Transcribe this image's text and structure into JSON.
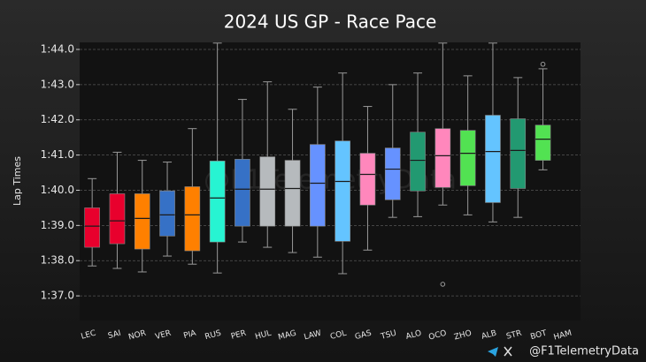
{
  "chart_data": {
    "type": "box",
    "title": "2024 US GP - Race Pace",
    "y_label": "Lap Times",
    "watermark": "@F1TelemetryData",
    "footer": "@F1TelemetryData",
    "categories": [
      "LEC",
      "SAI",
      "NOR",
      "VER",
      "PIA",
      "RUS",
      "PER",
      "HUL",
      "MAG",
      "LAW",
      "COL",
      "GAS",
      "TSU",
      "ALO",
      "OCO",
      "ZHO",
      "ALB",
      "STR",
      "BOT",
      "HAM"
    ],
    "colors": [
      "#e8002d",
      "#e8002d",
      "#ff8000",
      "#3671c6",
      "#ff8000",
      "#27f4d2",
      "#3671c6",
      "#b6babd",
      "#b6babd",
      "#6692ff",
      "#64c4ff",
      "#ff87bc",
      "#6692ff",
      "#229971",
      "#ff87bc",
      "#52e252",
      "#64c4ff",
      "#229971",
      "#52e252",
      null
    ],
    "boxes": [
      {
        "low": 97.85,
        "q1": 98.38,
        "median": 98.98,
        "q3": 99.5,
        "high": 100.33,
        "outliers": []
      },
      {
        "low": 97.78,
        "q1": 98.48,
        "median": 99.13,
        "q3": 99.9,
        "high": 101.08,
        "outliers": []
      },
      {
        "low": 97.68,
        "q1": 98.33,
        "median": 99.2,
        "q3": 99.9,
        "high": 100.85,
        "outliers": []
      },
      {
        "low": 98.13,
        "q1": 98.7,
        "median": 99.3,
        "q3": 99.98,
        "high": 100.8,
        "outliers": []
      },
      {
        "low": 97.9,
        "q1": 98.28,
        "median": 99.3,
        "q3": 100.1,
        "high": 101.75,
        "outliers": []
      },
      {
        "low": 97.65,
        "q1": 98.53,
        "median": 99.78,
        "q3": 100.83,
        "high": 104.18,
        "outliers": []
      },
      {
        "low": 98.53,
        "q1": 98.98,
        "median": 100.03,
        "q3": 100.88,
        "high": 102.58,
        "outliers": []
      },
      {
        "low": 98.38,
        "q1": 98.98,
        "median": 100.03,
        "q3": 100.95,
        "high": 103.08,
        "outliers": []
      },
      {
        "low": 98.23,
        "q1": 98.98,
        "median": 100.05,
        "q3": 100.85,
        "high": 102.3,
        "outliers": []
      },
      {
        "low": 98.1,
        "q1": 98.98,
        "median": 100.2,
        "q3": 101.3,
        "high": 102.93,
        "outliers": []
      },
      {
        "low": 97.63,
        "q1": 98.55,
        "median": 100.25,
        "q3": 101.4,
        "high": 103.33,
        "outliers": []
      },
      {
        "low": 98.3,
        "q1": 99.58,
        "median": 100.45,
        "q3": 101.05,
        "high": 102.38,
        "outliers": []
      },
      {
        "low": 99.23,
        "q1": 99.73,
        "median": 100.6,
        "q3": 101.2,
        "high": 103.0,
        "outliers": []
      },
      {
        "low": 99.25,
        "q1": 99.98,
        "median": 100.85,
        "q3": 101.65,
        "high": 103.33,
        "outliers": []
      },
      {
        "low": 99.58,
        "q1": 100.08,
        "median": 100.98,
        "q3": 101.75,
        "high": 104.18,
        "outliers": [
          97.33
        ]
      },
      {
        "low": 99.3,
        "q1": 100.13,
        "median": 101.05,
        "q3": 101.7,
        "high": 103.25,
        "outliers": []
      },
      {
        "low": 99.1,
        "q1": 99.65,
        "median": 101.1,
        "q3": 102.13,
        "high": 104.18,
        "outliers": []
      },
      {
        "low": 99.23,
        "q1": 100.05,
        "median": 101.13,
        "q3": 102.03,
        "high": 103.2,
        "outliers": []
      },
      {
        "low": 100.58,
        "q1": 100.85,
        "median": 101.45,
        "q3": 101.85,
        "high": 103.45,
        "outliers": [
          103.58
        ]
      },
      null
    ],
    "ylim": [
      96.3,
      104.2
    ],
    "yticks": [
      {
        "value": 97,
        "label": "1:37.0"
      },
      {
        "value": 98,
        "label": "1:38.0"
      },
      {
        "value": 99,
        "label": "1:39.0"
      },
      {
        "value": 100,
        "label": "1:40.0"
      },
      {
        "value": 101,
        "label": "1:41.0"
      },
      {
        "value": 102,
        "label": "1:42.0"
      },
      {
        "value": 103,
        "label": "1:43.0"
      },
      {
        "value": 104,
        "label": "1:44.0"
      }
    ],
    "grid": true
  }
}
